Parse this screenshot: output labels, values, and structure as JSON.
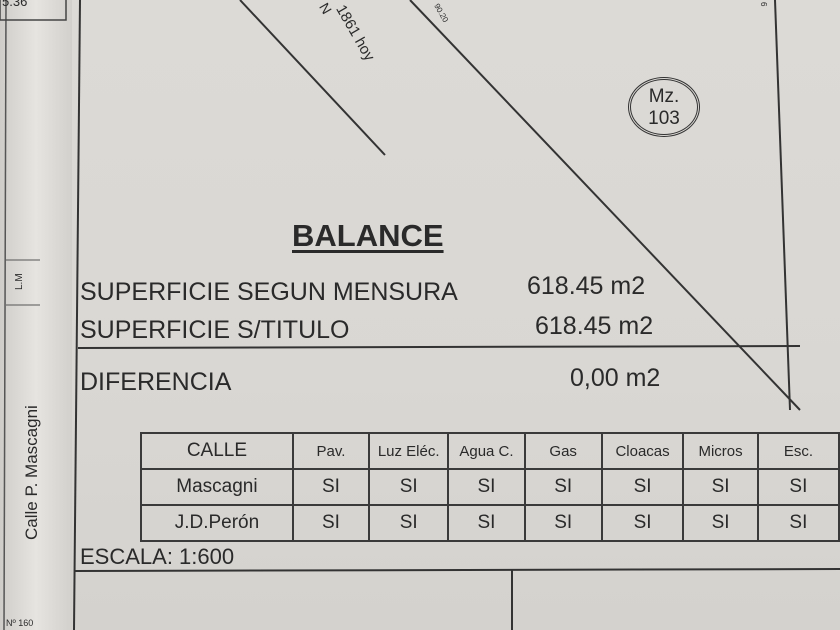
{
  "plan": {
    "top_left_value": "5.36",
    "street_label_top": "1861 hoy",
    "street_label_fragment": "N",
    "diagonal_measure": "90.20",
    "right_measure": "6",
    "block_label": "Mz.",
    "block_number": "103",
    "side_street": "Calle P. Mascagni",
    "lm_label": "L.M",
    "number_label": "Nº 160"
  },
  "balance": {
    "title": "BALANCE",
    "rows": [
      {
        "label": "SUPERFICIE  SEGUN MENSURA",
        "value": "618.45 m2"
      },
      {
        "label": "SUPERFICIE S/TITULO",
        "value": "618.45 m2"
      },
      {
        "label": "DIFERENCIA",
        "value": "0,00  m2"
      }
    ]
  },
  "services_table": {
    "headers": [
      "CALLE",
      "Pav.",
      "Luz Eléc.",
      "Agua C.",
      "Gas",
      "Cloacas",
      "Micros",
      "Esc."
    ],
    "rows": [
      [
        "Mascagni",
        "SI",
        "SI",
        "SI",
        "SI",
        "SI",
        "SI",
        "SI"
      ],
      [
        "J.D.Perón",
        "SI",
        "SI",
        "SI",
        "SI",
        "SI",
        "SI",
        "SI"
      ]
    ]
  },
  "scale": "ESCALA:  1:600"
}
